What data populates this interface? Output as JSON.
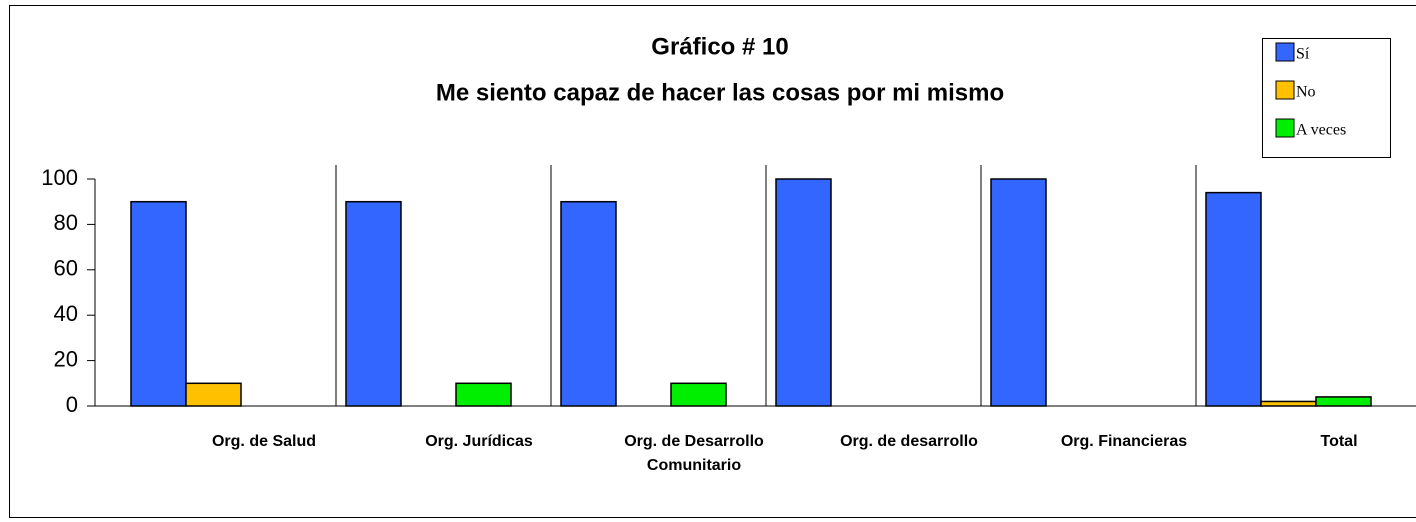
{
  "chart_data": {
    "type": "bar",
    "title": "Gráfico # 10",
    "subtitle": "Me siento capaz de hacer las cosas por mi mismo",
    "categories": [
      "Org. de Salud",
      "Org. Jurídicas",
      "Org. de Desarrollo Comunitario",
      "Org. de desarrollo",
      "Org. Financieras",
      "Total"
    ],
    "series": [
      {
        "name": "Sí",
        "color": "#3366ff",
        "values": [
          90,
          90,
          90,
          100,
          100,
          94
        ]
      },
      {
        "name": "No",
        "color": "#ffc000",
        "values": [
          10,
          0,
          0,
          0,
          0,
          2
        ]
      },
      {
        "name": "A veces",
        "color": "#00ee00",
        "values": [
          0,
          10,
          10,
          0,
          0,
          4
        ]
      }
    ],
    "ylim": [
      0,
      100
    ],
    "yticks": [
      0,
      20,
      40,
      60,
      80,
      100
    ],
    "grid": false,
    "legend": "top-right"
  }
}
